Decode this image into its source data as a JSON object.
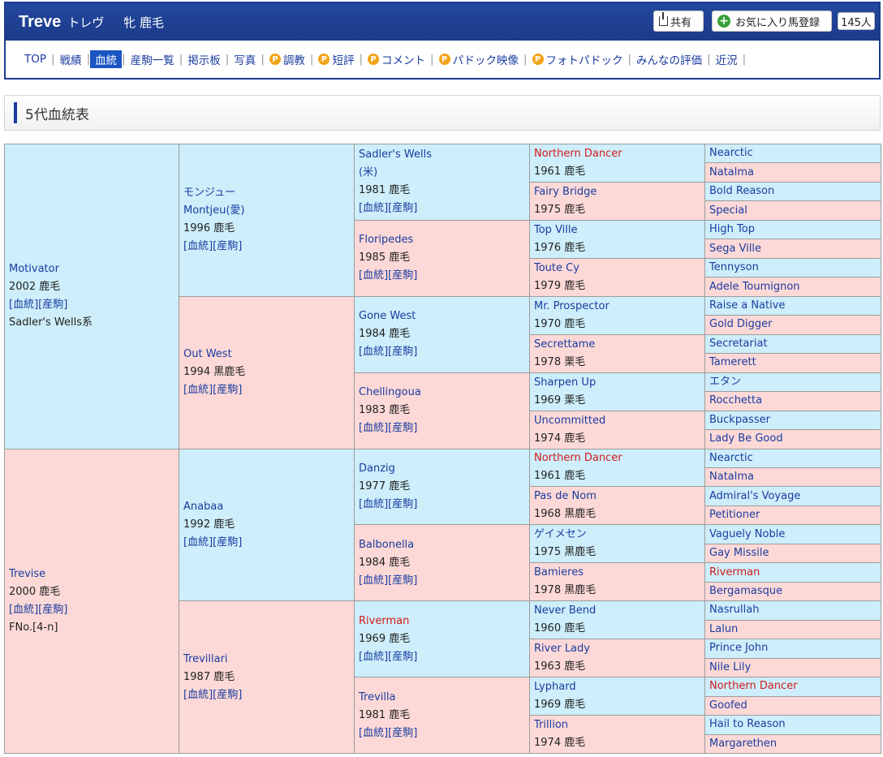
{
  "header": {
    "name": "Treve",
    "kana": "トレヴ",
    "info": "牝 鹿毛",
    "share_label": "共有",
    "fav_label": "お気に入り馬登録",
    "fav_count": "145人"
  },
  "nav": [
    "TOP",
    "戦績",
    "血統",
    "産駒一覧",
    "掲示板",
    "写真",
    "調教",
    "短評",
    "コメント",
    "パドック映像",
    "フォトパドック",
    "みんなの評価",
    "近況"
  ],
  "nav_badge": "P",
  "section": {
    "title": "5代血統表"
  },
  "links": {
    "pedigree": "[血統]",
    "progeny": "[産駒]"
  },
  "gen1": [
    {
      "name": "Motivator",
      "year": "2002 鹿毛",
      "extra": "Sadler's Wells系"
    },
    {
      "name": "Trevise",
      "year": "2000 鹿毛",
      "extra": "FNo.[4-n]"
    }
  ],
  "gen2": [
    {
      "name": "モンジュー",
      "name2": "Montjeu(愛)",
      "year": "1996 鹿毛"
    },
    {
      "name": "Out West",
      "year": "1994 黒鹿毛"
    },
    {
      "name": "Anabaa",
      "year": "1992 鹿毛"
    },
    {
      "name": "Trevillari",
      "year": "1987 鹿毛"
    }
  ],
  "gen3": [
    {
      "name": "Sadler's Wells",
      "name2": "(米)",
      "year": "1981 鹿毛"
    },
    {
      "name": "Floripedes",
      "year": "1985 鹿毛"
    },
    {
      "name": "Gone West",
      "year": "1984 鹿毛"
    },
    {
      "name": "Chellingoua",
      "year": "1983 鹿毛"
    },
    {
      "name": "Danzig",
      "year": "1977 鹿毛"
    },
    {
      "name": "Balbonella",
      "year": "1984 鹿毛"
    },
    {
      "name": "Riverman",
      "year": "1969 鹿毛"
    },
    {
      "name": "Trevilla",
      "year": "1981 鹿毛"
    }
  ],
  "gen4": [
    {
      "name": "Northern Dancer",
      "year": "1961 鹿毛"
    },
    {
      "name": "Fairy Bridge",
      "year": "1975 鹿毛"
    },
    {
      "name": "Top Ville",
      "year": "1976 鹿毛"
    },
    {
      "name": "Toute Cy",
      "year": "1979 鹿毛"
    },
    {
      "name": "Mr. Prospector",
      "year": "1970 鹿毛"
    },
    {
      "name": "Secrettame",
      "year": "1978 栗毛"
    },
    {
      "name": "Sharpen Up",
      "year": "1969 栗毛"
    },
    {
      "name": "Uncommitted",
      "year": "1974 鹿毛"
    },
    {
      "name": "Northern Dancer",
      "year": "1961 鹿毛"
    },
    {
      "name": "Pas de Nom",
      "year": "1968 黒鹿毛"
    },
    {
      "name": "ゲイメセン",
      "year": "1975 黒鹿毛"
    },
    {
      "name": "Bamieres",
      "year": "1978 黒鹿毛"
    },
    {
      "name": "Never Bend",
      "year": "1960 鹿毛"
    },
    {
      "name": "River Lady",
      "year": "1963 鹿毛"
    },
    {
      "name": "Lyphard",
      "year": "1969 鹿毛"
    },
    {
      "name": "Trillion",
      "year": "1974 鹿毛"
    }
  ],
  "gen5": [
    "Nearctic",
    "Natalma",
    "Bold Reason",
    "Special",
    "High Top",
    "Sega Ville",
    "Tennyson",
    "Adele Toumignon",
    "Raise a Native",
    "Gold Digger",
    "Secretariat",
    "Tamerett",
    "エタン",
    "Rocchetta",
    "Buckpasser",
    "Lady Be Good",
    "Nearctic",
    "Natalma",
    "Admiral's Voyage",
    "Petitioner",
    "Vaguely Noble",
    "Gay Missile",
    "Riverman",
    "Bergamasque",
    "Nasrullah",
    "Lalun",
    "Prince John",
    "Nile Lily",
    "Northern Dancer",
    "Goofed",
    "Hail to Reason",
    "Margarethen"
  ],
  "colors": {
    "male_bg": "#cdeefa",
    "female_bg": "#fcd9d7",
    "link": "#1b3ca0",
    "highlight": "#d21b1b",
    "header_bg": "#1c3a88"
  }
}
